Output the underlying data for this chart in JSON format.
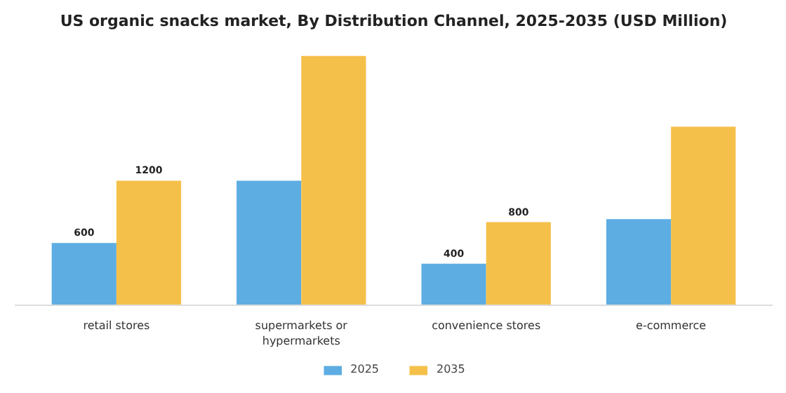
{
  "chart_data": {
    "type": "bar",
    "title": "US organic snacks market, By Distribution Channel, 2025-2035 (USD Million)",
    "categories": [
      "retail stores",
      "supermarkets or hypermarkets",
      "convenience stores",
      "e-commerce"
    ],
    "series": [
      {
        "name": "2025",
        "color": "#5dade2",
        "values": [
          600,
          1200,
          400,
          830
        ],
        "value_labels": [
          "600",
          null,
          "400",
          null
        ]
      },
      {
        "name": "2035",
        "color": "#f5c04a",
        "values": [
          1200,
          2400,
          800,
          1720
        ],
        "value_labels": [
          "1200",
          null,
          "800",
          null
        ]
      }
    ],
    "legend": "bottom"
  }
}
